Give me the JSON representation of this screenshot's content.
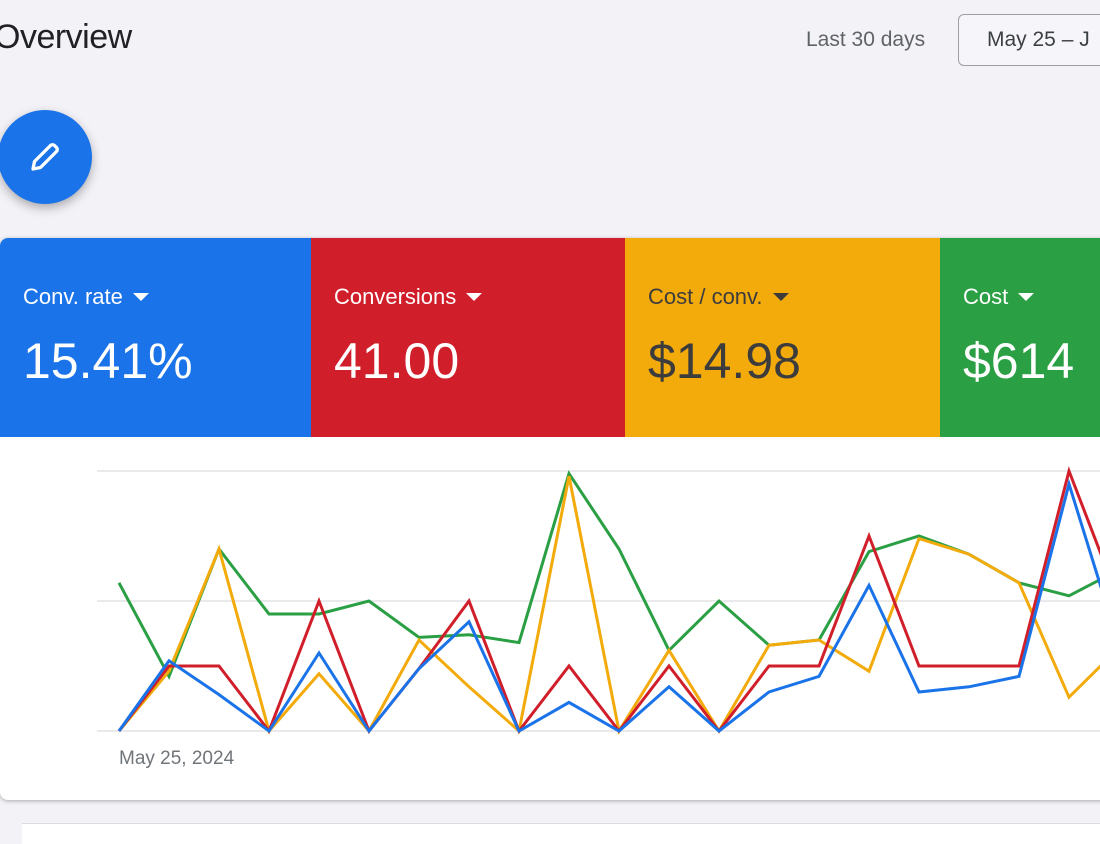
{
  "header": {
    "title": "Overview",
    "range_label": "Last 30 days",
    "date_range": "May 25 – J"
  },
  "fab": {
    "icon": "pencil-icon"
  },
  "metrics": [
    {
      "label": "Conv. rate",
      "value": "15.41%",
      "color": "#1a73e8"
    },
    {
      "label": "Conversions",
      "value": "41.00",
      "color": "#d01f2a"
    },
    {
      "label": "Cost / conv.",
      "value": "$14.98",
      "color": "#f3ab0c"
    },
    {
      "label": "Cost",
      "value": "$614",
      "color": "#2a9f44"
    }
  ],
  "chart_data": {
    "type": "line",
    "xlabel_start": "May 25, 2024",
    "ylim": [
      0,
      100
    ],
    "grid": true,
    "gridlines": 3,
    "series": [
      {
        "metric": "Cost",
        "color": "#2a9f44",
        "values": [
          57,
          21,
          70,
          45,
          45,
          50,
          36,
          37,
          34,
          99,
          70,
          31,
          50,
          33,
          35,
          69,
          75,
          68,
          57,
          52,
          62
        ]
      },
      {
        "metric": "Cost / conv.",
        "color": "#f3ab0c",
        "values": [
          0,
          23,
          70,
          0,
          22,
          0,
          35,
          17,
          0,
          98,
          0,
          31,
          0,
          33,
          35,
          23,
          74,
          68,
          57,
          13,
          32
        ]
      },
      {
        "metric": "Conversions",
        "color": "#d01f2a",
        "values": [
          0,
          25,
          25,
          0,
          50,
          0,
          24,
          50,
          0,
          25,
          0,
          25,
          0,
          25,
          25,
          75,
          25,
          25,
          25,
          100,
          50
        ]
      },
      {
        "metric": "Conv. rate",
        "color": "#1a73e8",
        "values": [
          0,
          27,
          14,
          0,
          30,
          0,
          24,
          42,
          0,
          11,
          0,
          17,
          0,
          15,
          21,
          56,
          15,
          17,
          21,
          95,
          33
        ]
      }
    ]
  }
}
